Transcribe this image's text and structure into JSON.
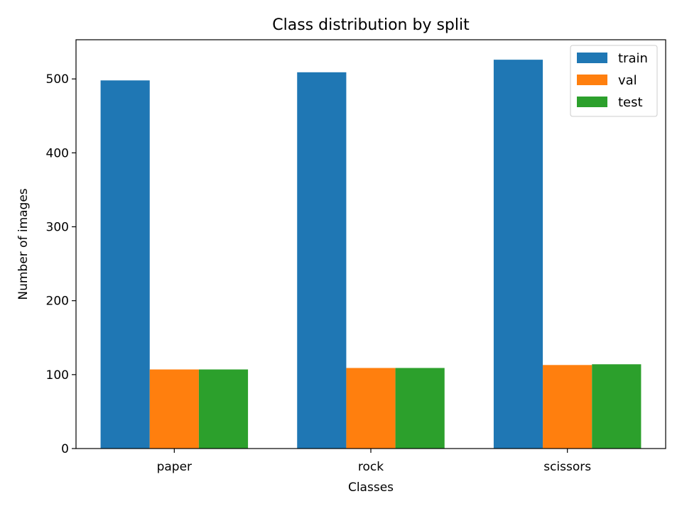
{
  "chart_data": {
    "type": "bar",
    "title": "Class distribution by split",
    "xlabel": "Classes",
    "ylabel": "Number of images",
    "categories": [
      "paper",
      "rock",
      "scissors"
    ],
    "series": [
      {
        "name": "train",
        "color": "#1f77b4",
        "values": [
          498,
          509,
          526
        ]
      },
      {
        "name": "val",
        "color": "#ff7f0e",
        "values": [
          107,
          109,
          113
        ]
      },
      {
        "name": "test",
        "color": "#2ca02c",
        "values": [
          107,
          109,
          114
        ]
      }
    ],
    "ylim": [
      0,
      553
    ],
    "yticks": [
      0,
      100,
      200,
      300,
      400,
      500
    ],
    "grid": false,
    "legend": "top-right"
  }
}
